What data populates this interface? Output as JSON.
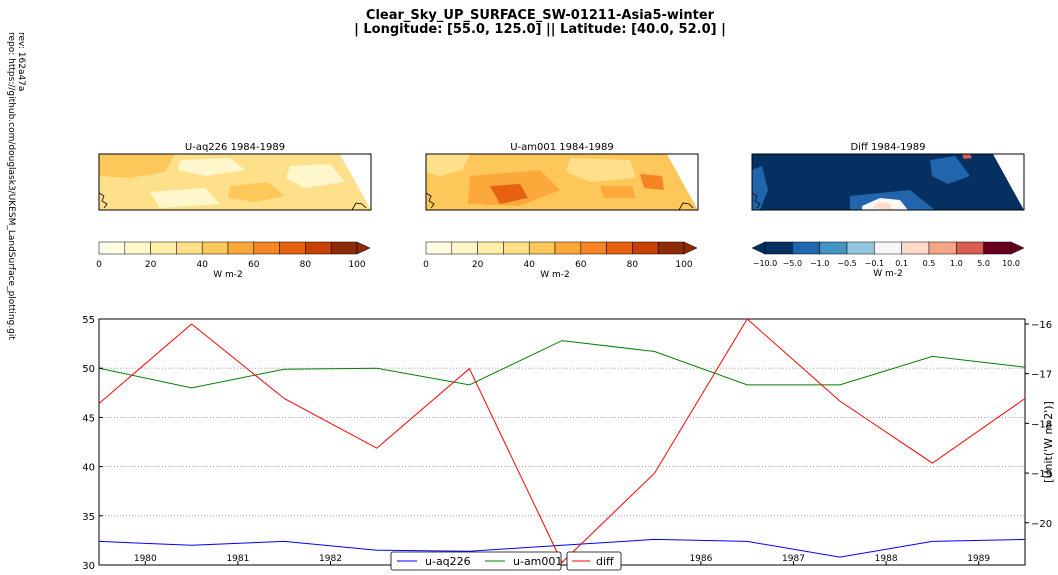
{
  "title_line1": "Clear_Sky_UP_SURFACE_SW-01211-Asia5-winter",
  "title_line2": "| Longitude: [55.0, 125.0] || Latitude: [40.0, 52.0] |",
  "side_rev": "rev: 162a47a",
  "side_repo": "repo: https://github.com/douglask3/UKESM_LandSurface_plotting.git",
  "maps": [
    {
      "title": "U-aq226 1984-1989"
    },
    {
      "title": "U-am001 1984-1989"
    },
    {
      "title": "Diff 1984-1989"
    }
  ],
  "colorbars": [
    {
      "ticks": [
        "0",
        "20",
        "40",
        "60",
        "80",
        "100"
      ],
      "unit": "W m-2",
      "colors": [
        "#fffde6",
        "#fff7cc",
        "#ffefa8",
        "#fee08a",
        "#fdc75a",
        "#fca83a",
        "#f58522",
        "#e66210",
        "#c64206",
        "#8e2b05"
      ]
    },
    {
      "ticks": [
        "0",
        "20",
        "40",
        "60",
        "80",
        "100"
      ],
      "unit": "W m-2",
      "colors": [
        "#fffde6",
        "#fff7cc",
        "#ffefa8",
        "#fee08a",
        "#fdc75a",
        "#fca83a",
        "#f58522",
        "#e66210",
        "#c64206",
        "#8e2b05"
      ]
    },
    {
      "ticks": [
        "−10.0",
        "−5.0",
        "−1.0",
        "−0.5",
        "−0.1",
        "0.1",
        "0.5",
        "1.0",
        "5.0",
        "10.0"
      ],
      "unit": "W m-2",
      "colors": [
        "#053061",
        "#2166ac",
        "#4393c3",
        "#92c5de",
        "#f7f7f7",
        "#fddbc7",
        "#f4a582",
        "#d6604d",
        "#67001f"
      ]
    }
  ],
  "chart_data": {
    "type": "line",
    "x": [
      1979.5,
      1980.5,
      1981.5,
      1982.5,
      1983.5,
      1984.5,
      1985.5,
      1986.5,
      1987.5,
      1988.5,
      1989.5
    ],
    "xlim": [
      1979.5,
      1989.5
    ],
    "xticks": [
      "1980",
      "1981",
      "1982",
      "1983",
      "1984",
      "1985",
      "1986",
      "1987",
      "1988",
      "1989"
    ],
    "ylim": [
      30,
      55
    ],
    "yticks": [
      "30",
      "35",
      "40",
      "45",
      "50",
      "55"
    ],
    "y2lim": [
      -20.85,
      -15.9
    ],
    "y2ticks": [
      "-20",
      "-19",
      "-18",
      "-17",
      "-16"
    ],
    "y2label": "[Unit('W m-2')]",
    "grid": "horizontal dotted",
    "series": [
      {
        "name": "u-aq226",
        "axis": "left",
        "color": "#0000ff",
        "values": [
          32.4,
          32.0,
          32.4,
          31.5,
          31.4,
          32.0,
          32.6,
          32.4,
          30.8,
          32.4,
          32.6
        ]
      },
      {
        "name": "u-am001",
        "axis": "left",
        "color": "#008000",
        "values": [
          50.0,
          48.0,
          49.9,
          50.0,
          48.3,
          52.8,
          51.7,
          48.3,
          48.3,
          51.2,
          50.1
        ]
      },
      {
        "name": "diff",
        "axis": "right",
        "color": "#ff0000",
        "values": [
          -17.6,
          -16.0,
          -17.5,
          -18.5,
          -16.9,
          -20.8,
          -19.0,
          -15.9,
          -17.55,
          -18.8,
          -17.5
        ]
      }
    ],
    "legend": "bottom-center"
  }
}
